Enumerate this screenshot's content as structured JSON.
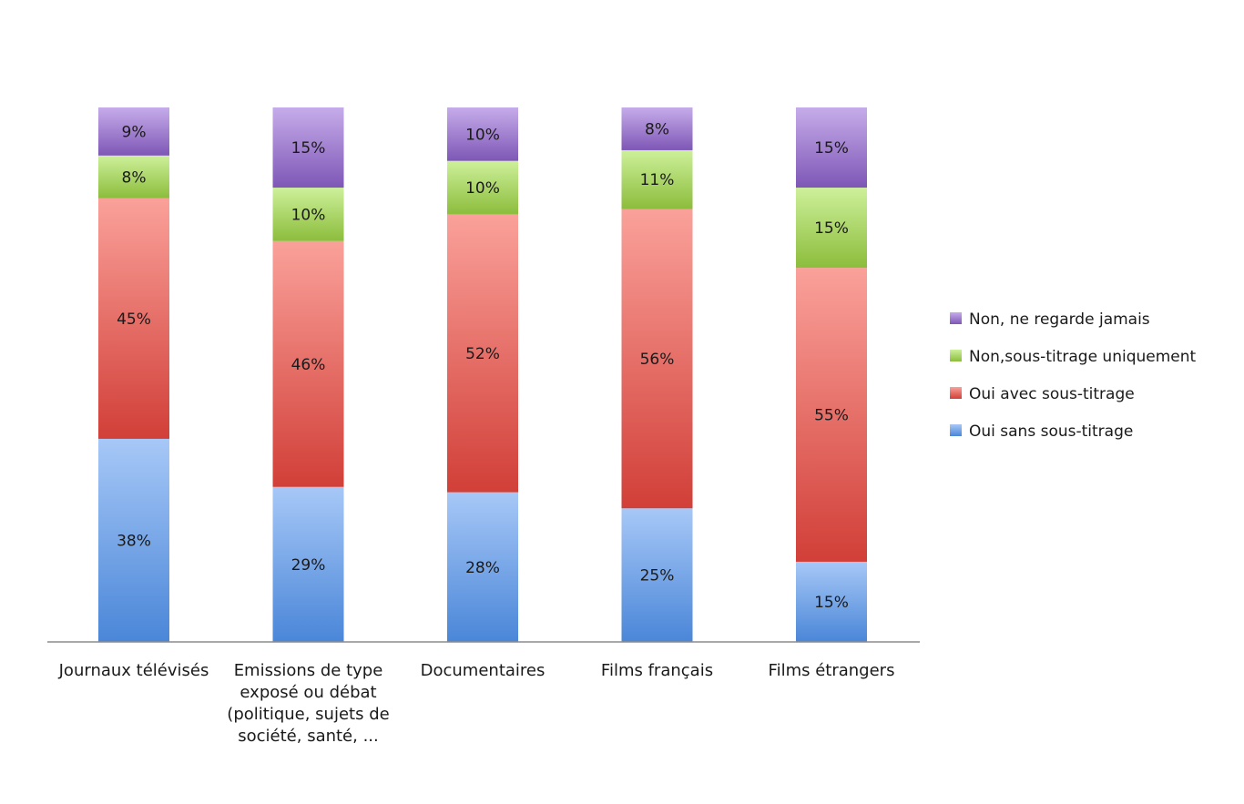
{
  "chart_data": {
    "type": "bar",
    "stacked": true,
    "title": "",
    "xlabel": "",
    "ylabel": "",
    "ylim": [
      0,
      100
    ],
    "grid": false,
    "legend_position": "right",
    "categories": [
      [
        "Journaux télévisés"
      ],
      [
        "Emissions de type",
        "exposé ou débat",
        "(politique, sujets de",
        "société, santé, ..."
      ],
      [
        "Documentaires"
      ],
      [
        "Films français"
      ],
      [
        "Films étrangers"
      ]
    ],
    "series": [
      {
        "name": "Oui sans sous-titrage",
        "color": "#4a86d8",
        "light": "#a7c8f7",
        "values": [
          38,
          29,
          28,
          25,
          15
        ]
      },
      {
        "name": "Oui avec sous-titrage",
        "color": "#d13f38",
        "light": "#faa19a",
        "values": [
          45,
          46,
          52,
          56,
          55
        ]
      },
      {
        "name": "Non,sous-titrage uniquement",
        "color": "#8cbd3c",
        "light": "#cdf09a",
        "values": [
          8,
          10,
          10,
          11,
          15
        ]
      },
      {
        "name": "Non, ne regarde jamais",
        "color": "#7e57b6",
        "light": "#c6acea",
        "values": [
          9,
          15,
          10,
          8,
          15
        ]
      }
    ]
  }
}
